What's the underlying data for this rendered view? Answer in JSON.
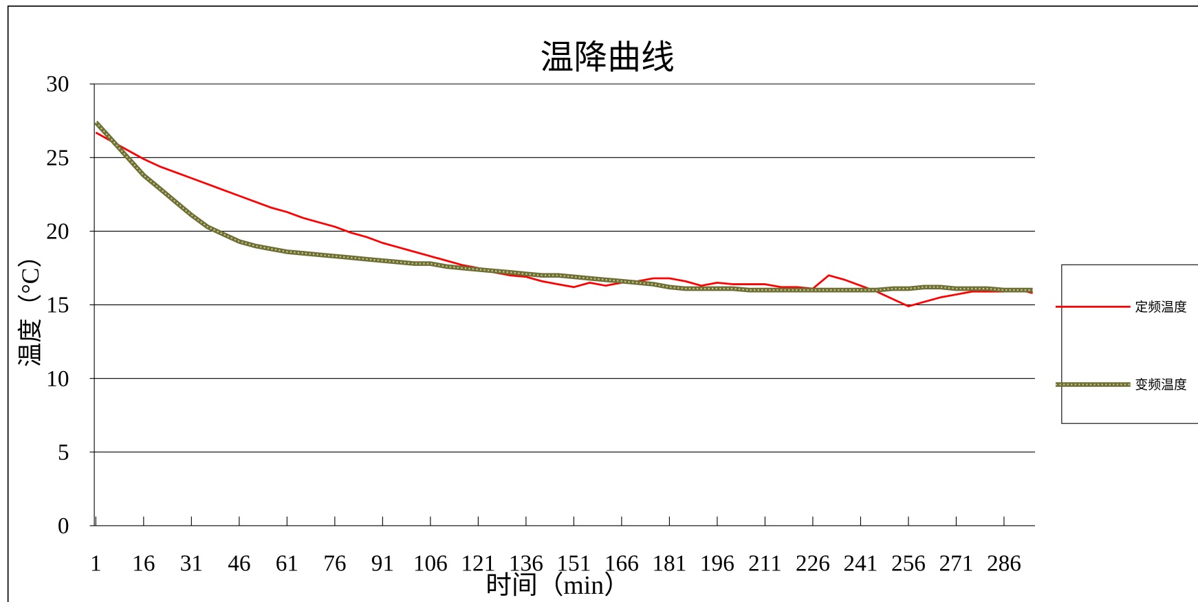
{
  "chart_data": {
    "type": "line",
    "title": "温降曲线",
    "x_label": "时间（min）",
    "y_label": "温度（°C）",
    "x": [
      1,
      6,
      11,
      16,
      21,
      26,
      31,
      36,
      41,
      46,
      51,
      56,
      61,
      66,
      71,
      76,
      81,
      86,
      91,
      96,
      101,
      106,
      111,
      116,
      121,
      126,
      131,
      136,
      141,
      146,
      151,
      156,
      161,
      166,
      171,
      176,
      181,
      186,
      191,
      196,
      201,
      206,
      211,
      216,
      221,
      226,
      231,
      236,
      241,
      246,
      251,
      256,
      261,
      266,
      271,
      276,
      281,
      286,
      291,
      295
    ],
    "series": [
      {
        "name": "定频温度",
        "color": "#ff0000",
        "values": [
          26.7,
          26.1,
          25.5,
          24.9,
          24.4,
          24.0,
          23.6,
          23.2,
          22.8,
          22.4,
          22.0,
          21.6,
          21.3,
          20.9,
          20.6,
          20.3,
          19.9,
          19.6,
          19.2,
          18.9,
          18.6,
          18.3,
          18.0,
          17.7,
          17.5,
          17.2,
          17.0,
          16.9,
          16.6,
          16.4,
          16.2,
          16.5,
          16.3,
          16.5,
          16.6,
          16.8,
          16.8,
          16.6,
          16.3,
          16.5,
          16.4,
          16.4,
          16.4,
          16.2,
          16.2,
          16.1,
          17.0,
          16.7,
          16.3,
          15.9,
          15.4,
          14.9,
          15.2,
          15.5,
          15.7,
          15.9,
          15.9,
          15.9,
          16.0,
          15.8
        ]
      },
      {
        "name": "变频温度",
        "color": "#6e6f36",
        "values": [
          27.4,
          26.2,
          25.0,
          23.8,
          22.9,
          22.0,
          21.1,
          20.3,
          19.8,
          19.3,
          19.0,
          18.8,
          18.6,
          18.5,
          18.4,
          18.3,
          18.2,
          18.1,
          18.0,
          17.9,
          17.8,
          17.8,
          17.6,
          17.5,
          17.4,
          17.3,
          17.2,
          17.1,
          17.0,
          17.0,
          16.9,
          16.8,
          16.7,
          16.6,
          16.5,
          16.4,
          16.2,
          16.1,
          16.1,
          16.1,
          16.1,
          16.0,
          16.0,
          16.0,
          16.0,
          16.0,
          16.0,
          16.0,
          16.0,
          16.0,
          16.1,
          16.1,
          16.2,
          16.2,
          16.1,
          16.1,
          16.1,
          16.0,
          16.0,
          16.0
        ]
      }
    ],
    "xlim": [
      1,
      295
    ],
    "xticks": [
      1,
      16,
      31,
      46,
      61,
      76,
      91,
      106,
      121,
      136,
      151,
      166,
      181,
      196,
      211,
      226,
      241,
      256,
      271,
      286
    ],
    "ylim": [
      0,
      30
    ],
    "yticks": [
      0,
      5,
      10,
      15,
      20,
      25,
      30
    ],
    "grid": true,
    "legend": "right"
  }
}
